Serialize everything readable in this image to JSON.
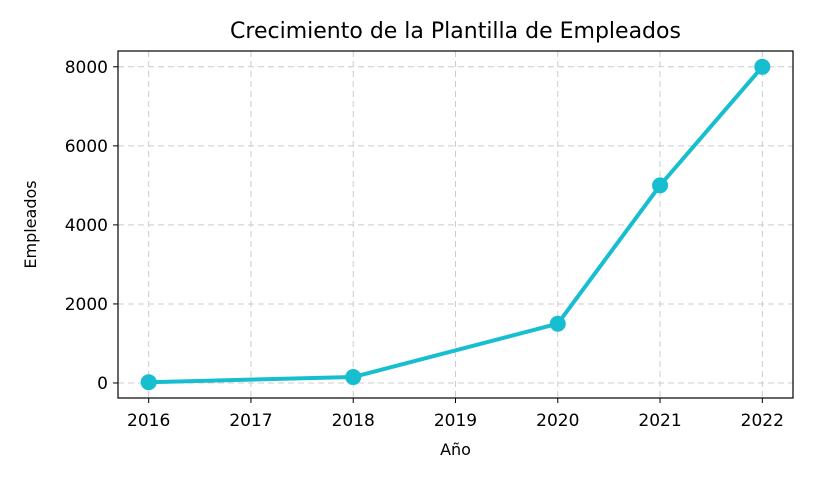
{
  "chart_data": {
    "type": "line",
    "title": "Crecimiento de la Plantilla de Empleados",
    "xlabel": "Año",
    "ylabel": "Empleados",
    "x_ticks": [
      "2016",
      "2017",
      "2018",
      "2019",
      "2020",
      "2021",
      "2022"
    ],
    "y_ticks": [
      "0",
      "2000",
      "4000",
      "6000",
      "8000"
    ],
    "xlim": [
      2015.7,
      2022.3
    ],
    "ylim": [
      -380,
      8400
    ],
    "grid": true,
    "series": [
      {
        "x": [
          2016,
          2018,
          2020,
          2021,
          2022
        ],
        "values": [
          20,
          150,
          1500,
          5000,
          8000
        ],
        "color": "#17becf"
      }
    ]
  }
}
